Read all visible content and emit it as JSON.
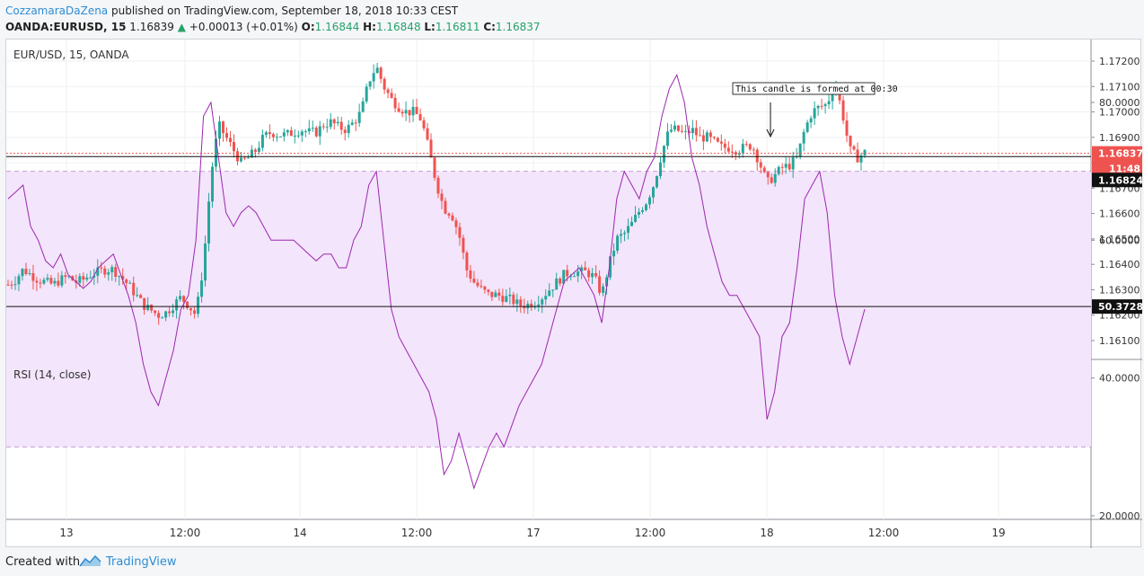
{
  "header": {
    "author": "CozzamaraDaZena",
    "published_text": "published on TradingView.com, September 18, 2018 10:33 CEST",
    "symbol": "OANDA:EURUSD, 15",
    "last": "1.16839",
    "change": "+0.00013 (+0.01%)",
    "o_label": "O:",
    "o_value": "1.16844",
    "h_label": "H:",
    "h_value": "1.16848",
    "l_label": "L:",
    "l_value": "1.16811",
    "c_label": "C:",
    "c_value": "1.16837"
  },
  "footer": {
    "created_with": "Created with",
    "brand": "TradingView"
  },
  "colors": {
    "up": "#26a69a",
    "down": "#ef5350",
    "rsi_line": "#9c27b0",
    "rsi_band": "#f3e5fb",
    "accent": "#2f8dd3"
  },
  "chart_data": {
    "type": "candlestick",
    "title": "EUR/USD, 15, OANDA",
    "price_axis_ticks": [
      "1.17200",
      "1.17100",
      "1.17000",
      "1.16900",
      "1.16800",
      "1.16700",
      "1.16600",
      "1.16500",
      "1.16400",
      "1.16300",
      "1.16200",
      "1.16100"
    ],
    "price_ylim": [
      1.1605,
      1.1729
    ],
    "x_tick_labels": [
      "13",
      "12:00",
      "14",
      "12:00",
      "17",
      "12:00",
      "18",
      "12:00",
      "19"
    ],
    "last_price_label": "1.16837",
    "countdown_label": "11:48",
    "crosshair_price_label": "1.16824",
    "last_price": 1.16837,
    "crosshair_price": 1.16824,
    "annotation": "This candle is formed at 00:30",
    "price_path": [
      1.1632,
      1.1634,
      1.1638,
      1.1636,
      1.1634,
      1.1633,
      1.1632,
      1.1634,
      1.1635,
      1.1633,
      1.1634,
      1.1636,
      1.1637,
      1.1638,
      1.1638,
      1.1635,
      1.1632,
      1.1628,
      1.1624,
      1.1622,
      1.162,
      1.1621,
      1.1624,
      1.1627,
      1.1624,
      1.162,
      1.164,
      1.1675,
      1.1695,
      1.169,
      1.1685,
      1.168,
      1.1682,
      1.1685,
      1.169,
      1.1692,
      1.1691,
      1.1691,
      1.1692,
      1.1693,
      1.1692,
      1.1692,
      1.1695,
      1.1696,
      1.1694,
      1.1693,
      1.1696,
      1.17,
      1.1712,
      1.1718,
      1.171,
      1.1705,
      1.1702,
      1.17,
      1.17,
      1.1697,
      1.1685,
      1.1672,
      1.1662,
      1.166,
      1.1652,
      1.1638,
      1.1633,
      1.163,
      1.1628,
      1.1628,
      1.1627,
      1.1626,
      1.1624,
      1.1624,
      1.1625,
      1.1627,
      1.163,
      1.1633,
      1.1636,
      1.1637,
      1.1637,
      1.1637,
      1.1635,
      1.1628,
      1.164,
      1.165,
      1.1652,
      1.1656,
      1.1661,
      1.1665,
      1.1672,
      1.1684,
      1.1693,
      1.1693,
      1.1691,
      1.1693,
      1.169,
      1.169,
      1.1688,
      1.1686,
      1.1686,
      1.1685,
      1.1686,
      1.1687,
      1.168,
      1.1672,
      1.1675,
      1.1678,
      1.1679,
      1.1682,
      1.1693,
      1.17,
      1.1702,
      1.1703,
      1.1712,
      1.17,
      1.1685,
      1.1682,
      1.1684
    ],
    "price_path_note": "",
    "rsi": {
      "label": "RSI (14, close)",
      "ticks": [
        "80.0000",
        "60.0000",
        "40.0000",
        "20.0000"
      ],
      "ylim": [
        16,
        86
      ],
      "upper_band": 70,
      "lower_band": 30,
      "current_label": "50.3728",
      "current": 50.3728,
      "values": [
        66,
        67,
        68,
        62,
        60,
        57,
        56,
        58,
        55,
        54,
        53,
        54,
        56,
        57,
        58,
        55,
        52,
        48,
        42,
        38,
        36,
        40,
        44,
        50,
        52,
        60,
        78,
        80,
        72,
        64,
        62,
        64,
        65,
        64,
        62,
        60,
        60,
        60,
        60,
        59,
        58,
        57,
        58,
        58,
        56,
        56,
        60,
        62,
        68,
        70,
        60,
        50,
        46,
        44,
        42,
        40,
        38,
        34,
        26,
        28,
        32,
        28,
        24,
        27,
        30,
        32,
        30,
        33,
        36,
        38,
        40,
        42,
        46,
        50,
        54,
        55,
        56,
        54,
        52,
        48,
        56,
        66,
        70,
        68,
        66,
        70,
        72,
        78,
        82,
        84,
        80,
        72,
        68,
        62,
        58,
        54,
        52,
        52,
        50,
        48,
        46,
        34,
        38,
        46,
        48,
        56,
        66,
        68,
        70,
        64,
        52,
        46,
        42,
        46,
        50
      ]
    }
  }
}
